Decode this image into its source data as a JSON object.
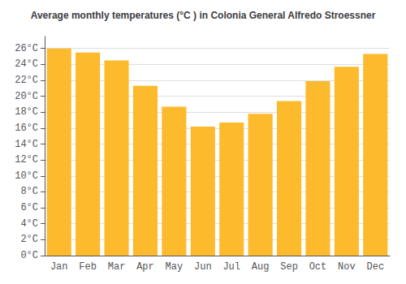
{
  "chart_data": {
    "type": "bar",
    "title": "Average monthly temperatures (°C ) in Colonia General Alfredo Stroessner",
    "categories": [
      "Jan",
      "Feb",
      "Mar",
      "Apr",
      "May",
      "Jun",
      "Jul",
      "Aug",
      "Sep",
      "Oct",
      "Nov",
      "Dec"
    ],
    "values": [
      26.0,
      25.5,
      24.5,
      21.3,
      18.7,
      16.2,
      16.7,
      17.8,
      19.4,
      21.9,
      23.7,
      25.3
    ],
    "color": "#FDBA2C",
    "ylim": [
      0,
      27.5
    ],
    "yticks": [
      {
        "value": 0,
        "label": "0°C"
      },
      {
        "value": 2,
        "label": "2°C"
      },
      {
        "value": 4,
        "label": "4°C"
      },
      {
        "value": 6,
        "label": "6°C"
      },
      {
        "value": 8,
        "label": "8°C"
      },
      {
        "value": 10,
        "label": "10°C"
      },
      {
        "value": 12,
        "label": "12°C"
      },
      {
        "value": 14,
        "label": "14°C"
      },
      {
        "value": 16,
        "label": "16°C"
      },
      {
        "value": 18,
        "label": "18°C"
      },
      {
        "value": 20,
        "label": "20°C"
      },
      {
        "value": 22,
        "label": "22°C"
      },
      {
        "value": 24,
        "label": "24°C"
      },
      {
        "value": 26,
        "label": "26°C"
      }
    ],
    "grid": true
  }
}
